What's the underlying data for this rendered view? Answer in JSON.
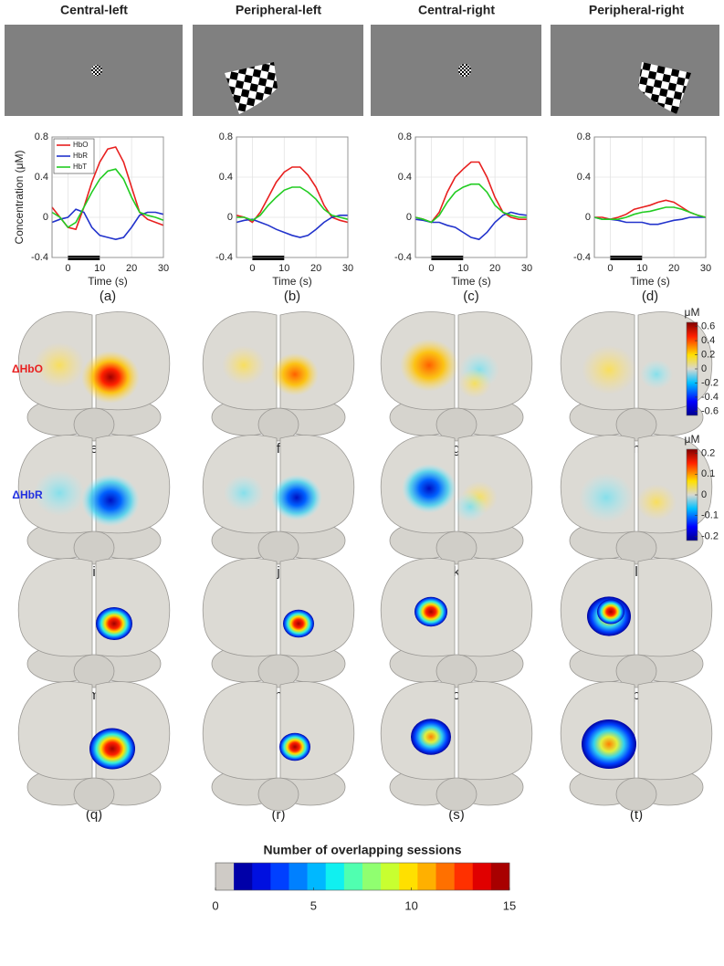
{
  "column_titles": [
    "Central-left",
    "Peripheral-left",
    "Central-right",
    "Peripheral-right"
  ],
  "chart_data": [
    {
      "type": "line",
      "x": [
        -5,
        -2.5,
        0,
        2.5,
        5,
        7.5,
        10,
        12.5,
        15,
        17.5,
        20,
        22.5,
        25,
        27.5,
        30
      ],
      "series": [
        {
          "name": "HbO",
          "color": "#e8201f",
          "values": [
            0.1,
            0.0,
            -0.1,
            -0.12,
            0.1,
            0.35,
            0.55,
            0.68,
            0.7,
            0.55,
            0.3,
            0.05,
            -0.02,
            -0.05,
            -0.08
          ]
        },
        {
          "name": "HbR",
          "color": "#2233cc",
          "values": [
            -0.05,
            -0.02,
            0.0,
            0.08,
            0.05,
            -0.1,
            -0.18,
            -0.2,
            -0.22,
            -0.2,
            -0.1,
            0.02,
            0.05,
            0.05,
            0.03
          ]
        },
        {
          "name": "HbT",
          "color": "#22cc22",
          "values": [
            0.05,
            0.0,
            -0.1,
            -0.05,
            0.1,
            0.25,
            0.38,
            0.46,
            0.48,
            0.38,
            0.2,
            0.05,
            0.02,
            0.0,
            -0.03
          ]
        }
      ],
      "xlabel": "Time (s)",
      "ylabel": "Concentration (μM)",
      "xlim": [
        -5,
        30
      ],
      "ylim": [
        -0.4,
        0.8
      ],
      "xticks": [
        0,
        10,
        20,
        30
      ],
      "yticks": [
        -0.4,
        0,
        0.4,
        0.8
      ],
      "grid": true,
      "legend": true,
      "stimulus": [
        0,
        10
      ]
    },
    {
      "type": "line",
      "x": [
        -5,
        -2.5,
        0,
        2.5,
        5,
        7.5,
        10,
        12.5,
        15,
        17.5,
        20,
        22.5,
        25,
        27.5,
        30
      ],
      "series": [
        {
          "name": "HbO",
          "color": "#e8201f",
          "values": [
            0.02,
            0.0,
            -0.05,
            0.05,
            0.2,
            0.35,
            0.45,
            0.5,
            0.5,
            0.42,
            0.3,
            0.12,
            0.0,
            -0.03,
            -0.05
          ]
        },
        {
          "name": "HbR",
          "color": "#2233cc",
          "values": [
            -0.05,
            -0.03,
            -0.02,
            -0.05,
            -0.08,
            -0.12,
            -0.15,
            -0.18,
            -0.2,
            -0.18,
            -0.12,
            -0.05,
            0.0,
            0.02,
            0.02
          ]
        },
        {
          "name": "HbT",
          "color": "#22cc22",
          "values": [
            0.0,
            0.0,
            -0.03,
            0.02,
            0.12,
            0.2,
            0.27,
            0.3,
            0.3,
            0.25,
            0.18,
            0.08,
            0.02,
            0.0,
            -0.02
          ]
        }
      ],
      "xlabel": "Time (s)",
      "xlim": [
        -5,
        30
      ],
      "ylim": [
        -0.4,
        0.8
      ],
      "xticks": [
        0,
        10,
        20,
        30
      ],
      "yticks": [
        -0.4,
        0,
        0.4,
        0.8
      ],
      "grid": true,
      "legend": false,
      "stimulus": [
        0,
        10
      ]
    },
    {
      "type": "line",
      "x": [
        -5,
        -2.5,
        0,
        2.5,
        5,
        7.5,
        10,
        12.5,
        15,
        17.5,
        20,
        22.5,
        25,
        27.5,
        30
      ],
      "series": [
        {
          "name": "HbO",
          "color": "#e8201f",
          "values": [
            0.0,
            -0.02,
            -0.05,
            0.05,
            0.25,
            0.4,
            0.48,
            0.55,
            0.55,
            0.4,
            0.2,
            0.05,
            0.0,
            -0.02,
            -0.02
          ]
        },
        {
          "name": "HbR",
          "color": "#2233cc",
          "values": [
            -0.02,
            -0.03,
            -0.05,
            -0.05,
            -0.08,
            -0.1,
            -0.15,
            -0.2,
            -0.22,
            -0.15,
            -0.05,
            0.02,
            0.05,
            0.03,
            0.02
          ]
        },
        {
          "name": "HbT",
          "color": "#22cc22",
          "values": [
            0.0,
            -0.02,
            -0.05,
            0.02,
            0.15,
            0.25,
            0.3,
            0.33,
            0.33,
            0.25,
            0.12,
            0.05,
            0.02,
            0.0,
            0.0
          ]
        }
      ],
      "xlabel": "Time (s)",
      "xlim": [
        -5,
        30
      ],
      "ylim": [
        -0.4,
        0.8
      ],
      "xticks": [
        0,
        10,
        20,
        30
      ],
      "yticks": [
        -0.4,
        0,
        0.4,
        0.8
      ],
      "grid": true,
      "legend": false,
      "stimulus": [
        0,
        10
      ]
    },
    {
      "type": "line",
      "x": [
        -5,
        -2.5,
        0,
        2.5,
        5,
        7.5,
        10,
        12.5,
        15,
        17.5,
        20,
        22.5,
        25,
        27.5,
        30
      ],
      "series": [
        {
          "name": "HbO",
          "color": "#e8201f",
          "values": [
            0.0,
            0.0,
            -0.02,
            0.0,
            0.03,
            0.08,
            0.1,
            0.12,
            0.15,
            0.17,
            0.15,
            0.1,
            0.05,
            0.02,
            0.0
          ]
        },
        {
          "name": "HbR",
          "color": "#2233cc",
          "values": [
            0.0,
            -0.02,
            -0.02,
            -0.03,
            -0.05,
            -0.05,
            -0.05,
            -0.07,
            -0.07,
            -0.05,
            -0.03,
            -0.02,
            0.0,
            0.0,
            0.0
          ]
        },
        {
          "name": "HbT",
          "color": "#22cc22",
          "values": [
            0.0,
            -0.02,
            -0.02,
            -0.02,
            0.0,
            0.03,
            0.05,
            0.06,
            0.08,
            0.1,
            0.1,
            0.08,
            0.05,
            0.02,
            0.0
          ]
        }
      ],
      "xlabel": "Time (s)",
      "xlim": [
        -5,
        30
      ],
      "ylim": [
        -0.4,
        0.8
      ],
      "xticks": [
        0,
        10,
        20,
        30
      ],
      "yticks": [
        -0.4,
        0,
        0.4,
        0.8
      ],
      "grid": true,
      "legend": false,
      "stimulus": [
        0,
        10
      ]
    }
  ],
  "panel_labels": [
    "(a)",
    "(b)",
    "(c)",
    "(d)",
    "(e)",
    "(f)",
    "(g)",
    "(h)",
    "(i)",
    "(j)",
    "(k)",
    "(l)",
    "(m)",
    "(n)",
    "(o)",
    "(p)",
    "(q)",
    "(r)",
    "(s)",
    "(t)"
  ],
  "row_labels": [
    "ΔHbO",
    "ΔHbR"
  ],
  "colorbars": [
    {
      "unit": "μM",
      "lim": [
        -0.66,
        0.66
      ],
      "ticks": [
        -0.6,
        -0.4,
        -0.2,
        0,
        0.2,
        0.4,
        0.6
      ]
    },
    {
      "unit": "μM",
      "lim": [
        -0.22,
        0.22
      ],
      "ticks": [
        -0.2,
        -0.1,
        0,
        0.1,
        0.2
      ]
    }
  ],
  "overlap_colorbar": {
    "title": "Number of overlapping sessions",
    "lim": [
      0,
      15
    ],
    "ticks": [
      0,
      5,
      10,
      15
    ],
    "colors": [
      "#cfcbc6",
      "#0000a8",
      "#0010e0",
      "#0040ff",
      "#0080ff",
      "#00b8ff",
      "#10f0f0",
      "#50ffb0",
      "#90ff70",
      "#c8ff30",
      "#ffe000",
      "#ffb000",
      "#ff7000",
      "#ff3000",
      "#e00000",
      "#a80000"
    ]
  }
}
